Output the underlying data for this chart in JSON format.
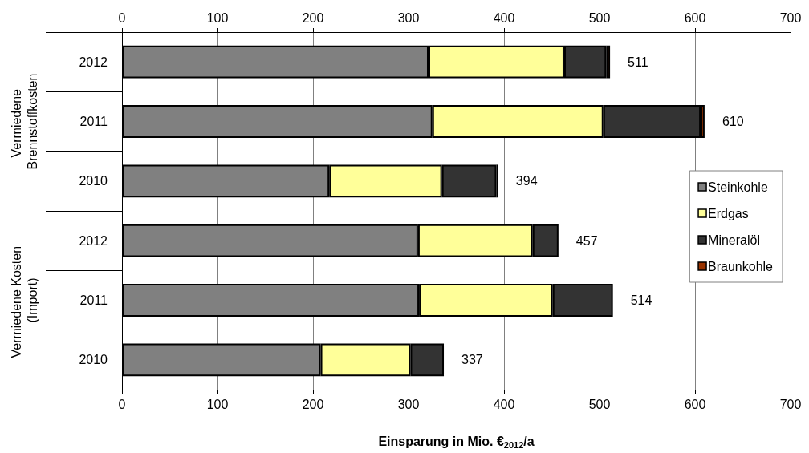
{
  "chart_data": {
    "type": "bar",
    "orientation": "horizontal",
    "stacked": true,
    "categories": [
      "2012",
      "2011",
      "2010",
      "2012",
      "2011",
      "2010"
    ],
    "series": [
      {
        "name": "Steinkohle",
        "color": "#808080",
        "values": [
          321,
          325,
          217,
          310,
          311,
          208
        ]
      },
      {
        "name": "Erdgas",
        "color": "#ffff99",
        "values": [
          142,
          179,
          118,
          120,
          140,
          94
        ]
      },
      {
        "name": "Mineralöl",
        "color": "#333333",
        "values": [
          44,
          102,
          57,
          27,
          63,
          35
        ]
      },
      {
        "name": "Braunkohle",
        "color": "#993300",
        "values": [
          4,
          4,
          2,
          null,
          null,
          null
        ]
      }
    ],
    "totals": [
      "511",
      "610",
      "394",
      "457",
      "514",
      "337"
    ],
    "xlim": [
      0,
      700
    ],
    "xticks": [
      0,
      100,
      200,
      300,
      400,
      500,
      600,
      700
    ],
    "x2lim": [
      0,
      700
    ],
    "x2ticks": [
      0,
      100,
      200,
      300,
      400,
      500,
      600,
      700
    ],
    "xlabel": "Einsparung in Mio. €$_{2012}$/a",
    "annotations": [
      "Vermiedene Brennstoffkosten",
      "Vermiedene Kosten (Import)"
    ],
    "grid": "x",
    "legend": "right"
  }
}
